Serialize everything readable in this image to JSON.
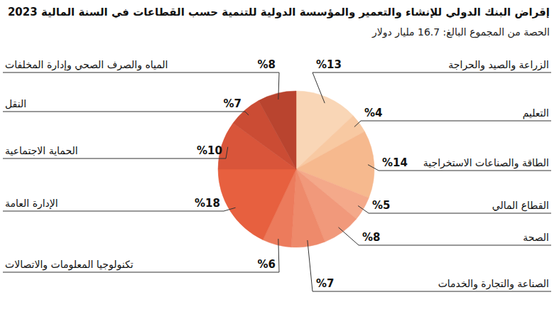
{
  "chart_data": {
    "type": "pie",
    "title": "إقراض البنك الدولي للإنشاء والتعمير والمؤسسة الدولية للتنمية حسب القطاعات في السنة المالية 2023",
    "subtitle": "الحصة من المجموع البالغ: 16.7 مليار دولار",
    "categories": [
      "الزراعة والصيد والحراجة",
      "التعليم",
      "الطاقة والصناعات الاستخراجية",
      "القطاع المالي",
      "الصحة",
      "الصناعة والتجارة والخدمات",
      "تكنولوجيا المعلومات والاتصالات",
      "الإدارة العامة",
      "الحماية الاجتماعية",
      "النقل",
      "المياه والصرف الصحي وإدارة المخلفات"
    ],
    "values": [
      13,
      4,
      14,
      5,
      8,
      7,
      6,
      18,
      10,
      7,
      8
    ],
    "value_labels": [
      "%13",
      "%4",
      "%14",
      "%5",
      "%8",
      "%7",
      "%6",
      "%18",
      "%10",
      "%7",
      "%8"
    ],
    "colors": [
      "#f9d6b6",
      "#f8c9a2",
      "#f6b98e",
      "#f4a98a",
      "#f1997b",
      "#ee8a6b",
      "#ec7b5c",
      "#e7603f",
      "#d9553a",
      "#cb4c34",
      "#b9442f"
    ],
    "data_labels": true
  }
}
